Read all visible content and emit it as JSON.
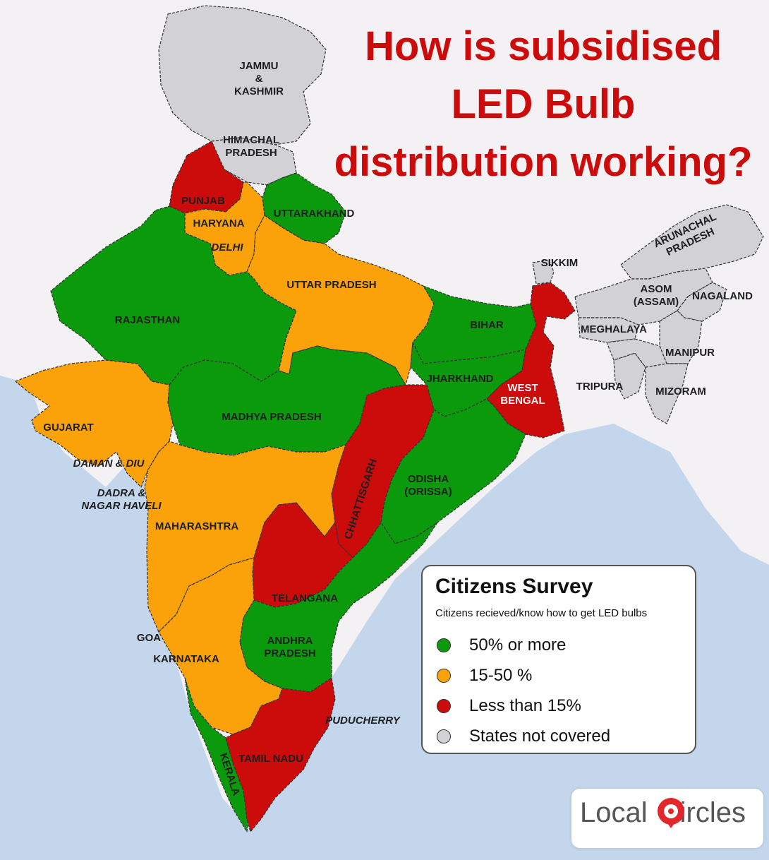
{
  "title": {
    "line1": "How is subsidised",
    "line2": "LED Bulb",
    "line3": "distribution working?"
  },
  "legend": {
    "title": "Citizens Survey",
    "subtitle": "Citizens recieved/know how to get LED bulbs",
    "items": [
      {
        "label": "50% or more",
        "color": "#0b9a0b"
      },
      {
        "label": "15-50 %",
        "color": "#fba20a"
      },
      {
        "label": "Less than 15%",
        "color": "#cc0b0b"
      },
      {
        "label": "States not covered",
        "color": "#d2d2d6"
      }
    ]
  },
  "colors": {
    "green": "#0b9a0b",
    "orange": "#fba20a",
    "red": "#cc0b0b",
    "grey": "#d2d2d6",
    "sea": "#c4d6ec",
    "land": "#f3f1f4"
  },
  "states": [
    {
      "name": "JAMMU\n&\nKASHMIR",
      "category": "not covered"
    },
    {
      "name": "HIMACHAL\nPRADESH",
      "category": "not covered"
    },
    {
      "name": "PUNJAB",
      "category": "less than 15%"
    },
    {
      "name": "UTTARAKHAND",
      "category": "50% or more"
    },
    {
      "name": "HARYANA",
      "category": "15-50 %"
    },
    {
      "name": "DELHI",
      "category": "15-50 %"
    },
    {
      "name": "UTTAR  PRADESH",
      "category": "15-50 %"
    },
    {
      "name": "RAJASTHAN",
      "category": "50% or more"
    },
    {
      "name": "BIHAR",
      "category": "50% or more"
    },
    {
      "name": "SIKKIM",
      "category": "not covered"
    },
    {
      "name": "ARUNACHAL\nPRADESH",
      "category": "not covered"
    },
    {
      "name": "ASOM\n(ASSAM)",
      "category": "not covered"
    },
    {
      "name": "NAGALAND",
      "category": "not covered"
    },
    {
      "name": "MEGHALAYA",
      "category": "not covered"
    },
    {
      "name": "MANIPUR",
      "category": "not covered"
    },
    {
      "name": "TRIPURA",
      "category": "not covered"
    },
    {
      "name": "MIZORAM",
      "category": "not covered"
    },
    {
      "name": "JHARKHAND",
      "category": "50% or more"
    },
    {
      "name": "WEST\nBENGAL",
      "category": "less than 15%"
    },
    {
      "name": "GUJARAT",
      "category": "15-50 %"
    },
    {
      "name": "MADHYA  PRADESH",
      "category": "50% or more"
    },
    {
      "name": "DAMAN & DIU",
      "category": "15-50 %"
    },
    {
      "name": "DADRA &\nNAGAR HAVELI",
      "category": "15-50 %"
    },
    {
      "name": "MAHARASHTRA",
      "category": "15-50 %"
    },
    {
      "name": "CHHATTISGARH",
      "category": "less than 15%"
    },
    {
      "name": "ODISHA\n(ORISSA)",
      "category": "50% or more"
    },
    {
      "name": "TELANGANA",
      "category": "less than 15%"
    },
    {
      "name": "GOA",
      "category": "15-50 %"
    },
    {
      "name": "KARNATAKA",
      "category": "15-50 %"
    },
    {
      "name": "ANDHRA\nPRADESH",
      "category": "50% or more"
    },
    {
      "name": "PUDUCHERRY",
      "category": "15-50 %"
    },
    {
      "name": "TAMIL NADU",
      "category": "less than 15%"
    },
    {
      "name": "KERALA",
      "category": "50% or more"
    }
  ],
  "logo": {
    "text_left": "Local",
    "text_right": "ircles"
  }
}
